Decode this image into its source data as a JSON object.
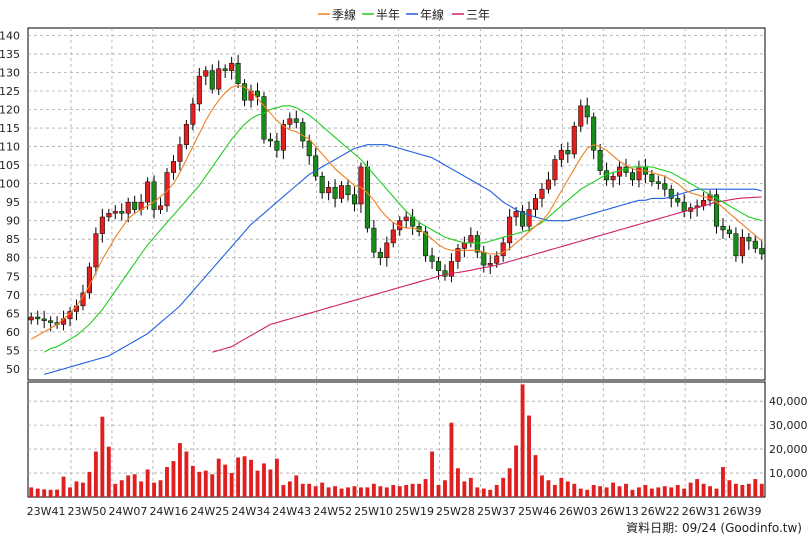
{
  "legend": {
    "ma_quarter": "季線",
    "ma_half": "半年",
    "ma_year": "年線",
    "ma_three": "三年"
  },
  "date_note": "資料日期: 09/24 (Goodinfo.tw)",
  "colors": {
    "up": "#e02020",
    "down": "#1a8a1a",
    "volume": "#e02020",
    "ma_quarter": "#f08020",
    "ma_half": "#22cc22",
    "ma_year": "#2060e0",
    "ma_three": "#d0206a",
    "grid": "#aaaaaa",
    "frame": "#000000"
  },
  "chart_data": [
    {
      "type": "candlestick",
      "title": "",
      "ylim": [
        47,
        142
      ],
      "yticks": [
        50,
        55,
        60,
        65,
        70,
        75,
        80,
        85,
        90,
        95,
        100,
        105,
        110,
        115,
        120,
        125,
        130,
        135,
        140
      ],
      "ytick_labels": [
        "50",
        "55",
        "60",
        "65",
        "70",
        "75",
        "80",
        "85",
        "90",
        "95",
        "100",
        "105",
        "110",
        "115",
        "120",
        "125",
        "130",
        "135",
        "140"
      ],
      "xtick_labels": [
        "23W41",
        "23W50",
        "24W07",
        "24W16",
        "24W25",
        "24W34",
        "24W43",
        "24W52",
        "25W10",
        "25W19",
        "25W28",
        "25W37",
        "25W46",
        "26W03",
        "26W13",
        "26W22",
        "26W31",
        "26W39"
      ],
      "grid": true,
      "legend_position": "top-center",
      "close": [
        64,
        63.5,
        63,
        62.5,
        62,
        63.5,
        65.5,
        67,
        70.5,
        77.5,
        86.5,
        91,
        92,
        92.5,
        92,
        95,
        93,
        95,
        100.5,
        93,
        94,
        103,
        106,
        110.5,
        116,
        121.5,
        129,
        130.5,
        125.5,
        131,
        130.5,
        132.5,
        127,
        122.5,
        125,
        123.5,
        112,
        111.5,
        109,
        116,
        117.5,
        116.5,
        111.5,
        107.5,
        102,
        97.5,
        99,
        96,
        99.5,
        97,
        94.5,
        104.5,
        88,
        81.5,
        80,
        84,
        87.5,
        90,
        91,
        88.5,
        87,
        80.5,
        79,
        76.5,
        75,
        79,
        82.5,
        84,
        86,
        81.5,
        78,
        78.5,
        80.5,
        84,
        91,
        92.5,
        88.5,
        93,
        96,
        98.5,
        101,
        106.5,
        109,
        108,
        115.5,
        121,
        118,
        109,
        103.5,
        101,
        102,
        104.5,
        103,
        101,
        104.5,
        102.5,
        100.5,
        100,
        98.5,
        96,
        95,
        92.5,
        93.5,
        94,
        95.5,
        97,
        88.5,
        87.5,
        86.5,
        80.5,
        85.5,
        84.5,
        82.5,
        81
      ],
      "ma_quarter": [
        58,
        59,
        60,
        61,
        62,
        63.5,
        65,
        67,
        69.5,
        72.5,
        76,
        79.5,
        82.5,
        85.5,
        88,
        90.5,
        92,
        93,
        94,
        95,
        96.5,
        98,
        100,
        103,
        106.5,
        110,
        113.5,
        117,
        120,
        122.5,
        124.5,
        126,
        126.5,
        126,
        125,
        123,
        121,
        119,
        117,
        115.5,
        114.5,
        114,
        113,
        112,
        110,
        108,
        106,
        104,
        102.5,
        101,
        99.5,
        99,
        97.5,
        95.5,
        93,
        91,
        89.5,
        88.5,
        88,
        88,
        87.5,
        86.5,
        85,
        83.5,
        82.5,
        82,
        82,
        82,
        82,
        82,
        81.5,
        81,
        81,
        81.5,
        82.5,
        84,
        85.5,
        87,
        88.5,
        90,
        92,
        95,
        98,
        101,
        104,
        107,
        109.5,
        110.5,
        110,
        109,
        107.5,
        106,
        105,
        104,
        103.5,
        103.5,
        103,
        102.5,
        102,
        101,
        100,
        98.5,
        97.5,
        97,
        96.5,
        96,
        95,
        93.5,
        92,
        90.5,
        89,
        87.5,
        86,
        84.5
      ],
      "ma_half": [
        null,
        null,
        54.5,
        55.5,
        56,
        57,
        58,
        59,
        60.5,
        62,
        64,
        66,
        68.5,
        71,
        73.5,
        76,
        78.5,
        81,
        83.5,
        85.5,
        87.5,
        89.5,
        91.5,
        93.5,
        95.5,
        97.5,
        99.5,
        102,
        104.5,
        107,
        109.5,
        112,
        114,
        116,
        117.5,
        118.5,
        119,
        120,
        120.5,
        121,
        121,
        120.5,
        119.5,
        118.5,
        117,
        115.5,
        114,
        112.5,
        111,
        109.5,
        108,
        106.5,
        104.5,
        102.5,
        100.5,
        98.5,
        96.5,
        94.5,
        92.5,
        91,
        89.5,
        88.5,
        87.5,
        86.5,
        85.5,
        85,
        84.5,
        84,
        84,
        84,
        84,
        84.5,
        85,
        85.5,
        86,
        86.5,
        87,
        87.5,
        88.5,
        89.5,
        91,
        92.5,
        94,
        95.5,
        97,
        98.5,
        99.5,
        100.5,
        101.5,
        102.5,
        103,
        103.5,
        104,
        104.5,
        104.5,
        104.5,
        104.5,
        104,
        103.5,
        103,
        102,
        101,
        100,
        99,
        98,
        97,
        96,
        95,
        94,
        93,
        92,
        91,
        90.5,
        90
      ],
      "ma_year": [
        null,
        null,
        48.5,
        49,
        49.5,
        50,
        50.5,
        51,
        51.5,
        52,
        52.5,
        53,
        53.5,
        54.5,
        55.5,
        56.5,
        57.5,
        58.5,
        59.5,
        61,
        62.5,
        64,
        65.5,
        67,
        69,
        71,
        73,
        75,
        77,
        79,
        81,
        83,
        85,
        87,
        89,
        90.5,
        92,
        93.5,
        95,
        96.5,
        98,
        99.5,
        101,
        102.5,
        103.5,
        104.5,
        105.5,
        106.5,
        107.5,
        108.5,
        109.5,
        110,
        110.5,
        110.5,
        110.5,
        110.5,
        110,
        109.5,
        109,
        108.5,
        108,
        107.5,
        107,
        106,
        105,
        104,
        103,
        102,
        101,
        100,
        99,
        98,
        96.5,
        95,
        94,
        93,
        92,
        91.5,
        91,
        90.5,
        90,
        90,
        90,
        90,
        90.5,
        91,
        91.5,
        92,
        92.5,
        93,
        93.5,
        94,
        94.5,
        95,
        95.5,
        95.5,
        96,
        96,
        96,
        96.5,
        97,
        97.5,
        98,
        98.5,
        98.5,
        98.5,
        98.5,
        98.5,
        98.5,
        98.5,
        98.5,
        98.5,
        98.5,
        98
      ],
      "ma_three": [
        null,
        null,
        null,
        null,
        null,
        null,
        null,
        null,
        null,
        null,
        null,
        null,
        null,
        null,
        null,
        null,
        null,
        null,
        null,
        null,
        null,
        null,
        null,
        null,
        null,
        null,
        null,
        null,
        54.5,
        55,
        55.5,
        56,
        57,
        58,
        59,
        60,
        61,
        62,
        62.5,
        63,
        63.5,
        64,
        64.5,
        65,
        65.5,
        66,
        66.5,
        67,
        67.5,
        68,
        68.5,
        69,
        69.5,
        70,
        70.5,
        71,
        71.5,
        72,
        72.5,
        73,
        73.5,
        74,
        74.5,
        75,
        75.5,
        75.8,
        76,
        76.3,
        76.6,
        77,
        77.3,
        77.6,
        78,
        78.5,
        79,
        79.5,
        80,
        80.5,
        81,
        81.5,
        82,
        82.5,
        83,
        83.5,
        84,
        84.5,
        85,
        85.5,
        86,
        86.5,
        87,
        87.5,
        88,
        88.5,
        89,
        89.5,
        90,
        90.5,
        91,
        91.5,
        92,
        92.5,
        93,
        93.5,
        94,
        94.5,
        95,
        95.3,
        95.6,
        95.9,
        96.1,
        96.2,
        96.3,
        96.4
      ]
    },
    {
      "type": "bar",
      "title": "",
      "ylim": [
        0,
        48000
      ],
      "yticks": [
        10000,
        20000,
        30000,
        40000
      ],
      "ytick_labels": [
        "10,000",
        "20,000",
        "30,000",
        "40,000"
      ],
      "grid": true,
      "values": [
        4000,
        3500,
        3200,
        3000,
        3100,
        8500,
        4000,
        6500,
        6000,
        10500,
        19000,
        33500,
        21000,
        5500,
        7000,
        9000,
        9500,
        6500,
        11500,
        6000,
        7000,
        12500,
        15000,
        22500,
        19000,
        13000,
        10500,
        11000,
        9500,
        16000,
        13500,
        10000,
        16500,
        17000,
        15500,
        11000,
        14000,
        11500,
        16000,
        5000,
        6500,
        9000,
        5500,
        5500,
        4500,
        6000,
        4000,
        4500,
        3500,
        4000,
        4500,
        4000,
        4000,
        5500,
        4500,
        4000,
        5000,
        4500,
        5000,
        5500,
        5500,
        7500,
        19000,
        5000,
        7000,
        31000,
        12000,
        6500,
        8000,
        4000,
        3500,
        3000,
        5000,
        8000,
        12000,
        21500,
        47000,
        34000,
        17500,
        9000,
        7000,
        5000,
        8000,
        6500,
        5500,
        3500,
        3000,
        5000,
        4500,
        4000,
        6000,
        4500,
        5500,
        3000,
        4000,
        5000,
        3500,
        4000,
        4500,
        4000,
        5000,
        3500,
        6000,
        7500,
        5500,
        4500,
        3500,
        12500,
        7000,
        5500,
        5000,
        5500,
        7500,
        5500
      ]
    }
  ]
}
